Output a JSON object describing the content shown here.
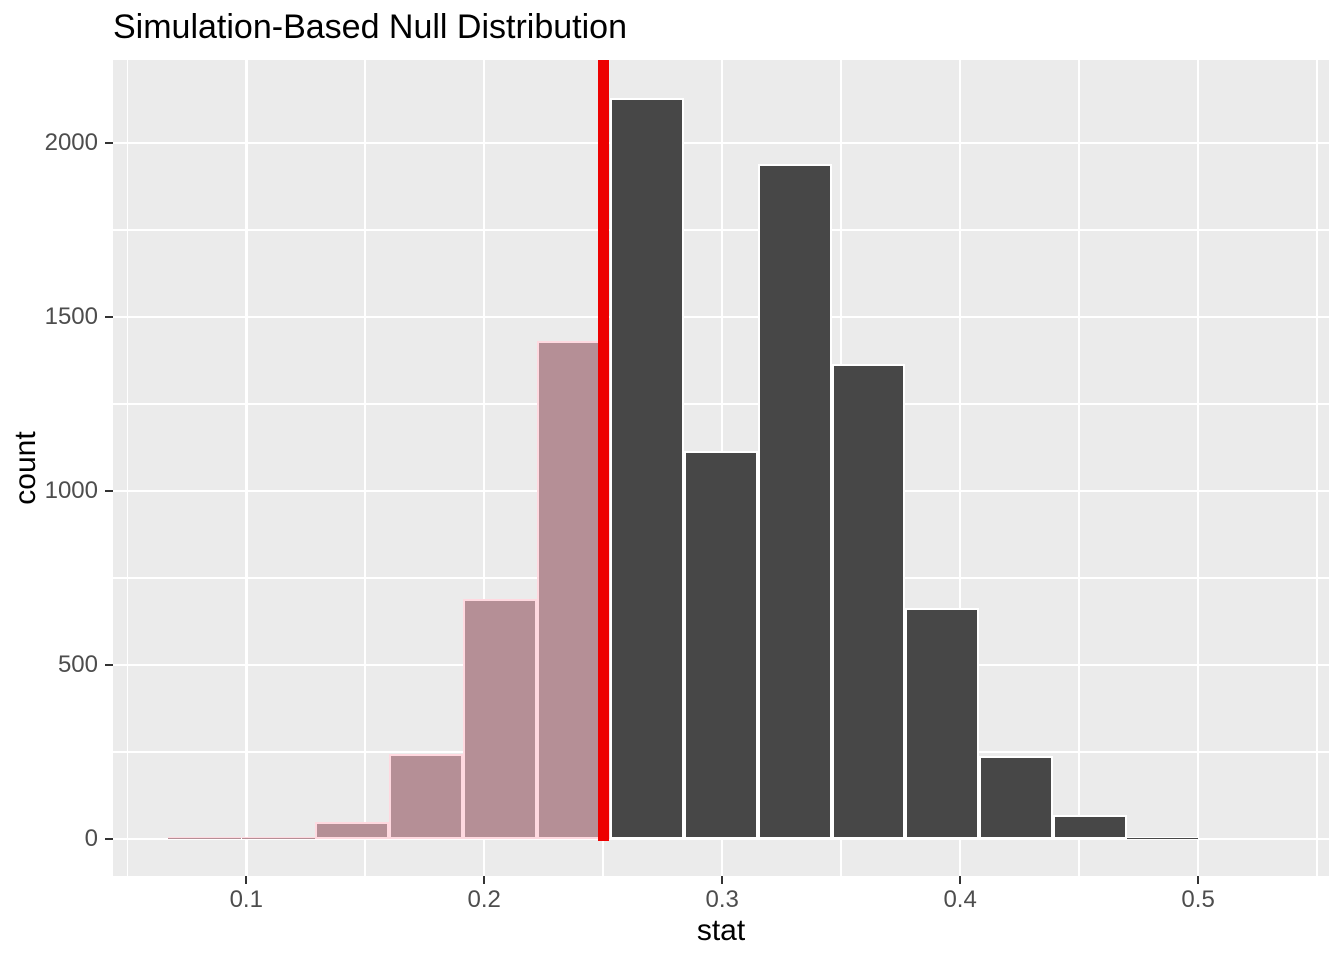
{
  "chart_data": {
    "type": "bar",
    "subtype": "histogram",
    "title": "Simulation-Based Null Distribution",
    "xlabel": "stat",
    "ylabel": "count",
    "bin_edges": [
      0.067,
      0.098,
      0.129,
      0.16,
      0.191,
      0.222,
      0.253,
      0.284,
      0.315,
      0.346,
      0.377,
      0.408,
      0.439,
      0.47,
      0.5,
      0.531
    ],
    "counts": [
      1,
      2,
      50,
      245,
      690,
      1430,
      2130,
      1115,
      1940,
      1365,
      665,
      240,
      70,
      10,
      0
    ],
    "shaded_bin_count": 6,
    "vline_x": 0.25,
    "x_ticks": [
      0.1,
      0.2,
      0.3,
      0.4,
      0.5
    ],
    "x_tick_labels": [
      "0.1",
      "0.2",
      "0.3",
      "0.4",
      "0.5"
    ],
    "x_minor_ticks": [
      0.05,
      0.15,
      0.25,
      0.35,
      0.45,
      0.55
    ],
    "y_ticks": [
      0,
      500,
      1000,
      1500,
      2000
    ],
    "y_tick_labels": [
      "0",
      "500",
      "1000",
      "1500",
      "2000"
    ],
    "y_minor_ticks": [
      250,
      750,
      1250,
      1750
    ],
    "x_domain": [
      0.044,
      0.555
    ],
    "y_domain": [
      -106,
      2238
    ],
    "grid": true,
    "legend": false,
    "colors": {
      "bar_fill": "#474747",
      "bar_border": "#ffffff",
      "shaded_fill": "#b58f96",
      "shaded_border": "#ffd9e0",
      "vline": "#ed0000",
      "panel_bg": "#ebebeb",
      "gridline": "#ffffff",
      "tick_text": "#4d4d4d",
      "title_text": "#000000"
    }
  }
}
